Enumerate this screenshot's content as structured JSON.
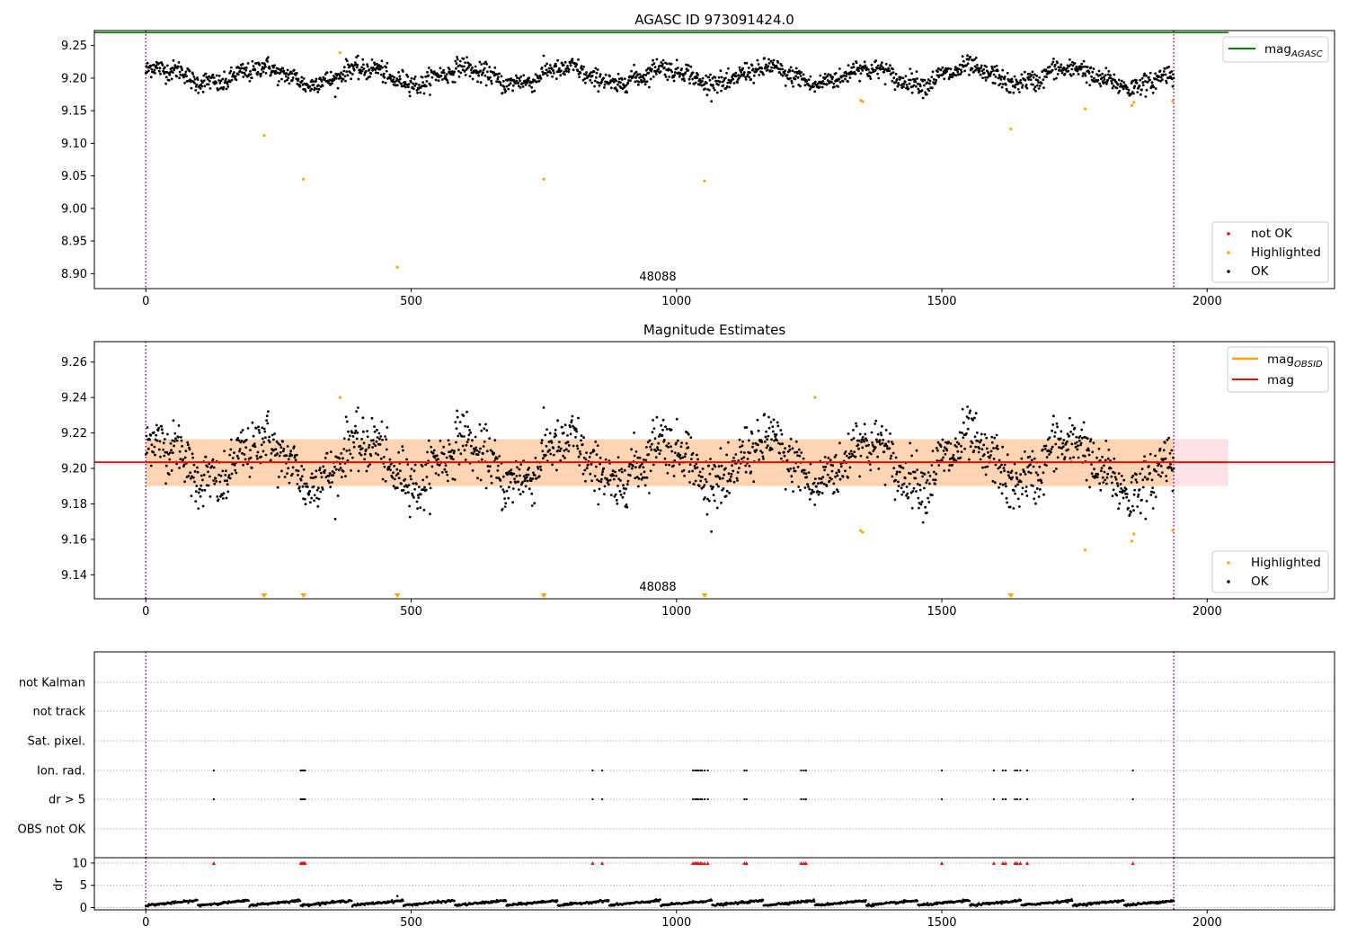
{
  "chart_data": [
    {
      "type": "scatter",
      "title": "AGASC ID 973091424.0",
      "xlim": [
        -97,
        2240
      ],
      "ylim": [
        8.877,
        9.273
      ],
      "xticks": [
        0,
        500,
        1000,
        1500,
        2000
      ],
      "yticks": [
        8.9,
        8.95,
        9.0,
        9.05,
        9.1,
        9.15,
        9.2,
        9.25
      ],
      "annotation": {
        "text": "48088",
        "x": 967,
        "y": 8.888
      },
      "vlines": [
        0,
        1937
      ],
      "hline": {
        "name": "mag_AGASC",
        "y": 9.27,
        "x_range": [
          -97,
          2040
        ],
        "color": "#008000"
      },
      "legend_upper": {
        "label": "mag",
        "sub": "AGASC"
      },
      "legend_lower": [
        {
          "label": "not OK",
          "color": "#ff0000"
        },
        {
          "label": "Highlighted",
          "color": "#ffa500"
        },
        {
          "label": "OK",
          "color": "#000000"
        }
      ],
      "ok_series": {
        "name": "OK",
        "x_range": [
          0,
          1937
        ],
        "n": 1900,
        "color": "#000000"
      },
      "highlighted": [
        [
          223,
          9.112
        ],
        [
          297,
          9.045
        ],
        [
          366,
          9.239
        ],
        [
          474,
          8.91
        ],
        [
          750,
          9.045
        ],
        [
          1053,
          9.042
        ],
        [
          1347,
          9.166
        ],
        [
          1351,
          9.164
        ],
        [
          1630,
          9.122
        ],
        [
          1770,
          9.153
        ],
        [
          1858,
          9.158
        ],
        [
          1862,
          9.163
        ],
        [
          1935,
          9.165
        ]
      ]
    },
    {
      "type": "scatter",
      "title": "Magnitude Estimates",
      "xlim": [
        -97,
        2240
      ],
      "ylim": [
        9.1265,
        9.2715
      ],
      "xticks": [
        0,
        500,
        1000,
        1500,
        2000
      ],
      "yticks": [
        9.14,
        9.16,
        9.18,
        9.2,
        9.22,
        9.24,
        9.26
      ],
      "annotation": {
        "text": "48088",
        "x": 967,
        "y": 9.131
      },
      "vlines": [
        0,
        1937
      ],
      "mag_line": {
        "name": "mag",
        "y": 9.2035,
        "color": "#ff0000"
      },
      "band_obsid": {
        "x_range": [
          0,
          1937
        ],
        "y_range": [
          9.19,
          9.2165
        ]
      },
      "band_mag": {
        "x_range": [
          0,
          2040
        ],
        "y_range": [
          9.19,
          9.2165
        ]
      },
      "legend_upper": [
        {
          "label": "mag",
          "sub": "OBSID",
          "color": "#ffa500"
        },
        {
          "label": "mag",
          "sub": "",
          "color": "#ff0000"
        }
      ],
      "legend_lower": [
        {
          "label": "Highlighted",
          "color": "#ffa500"
        },
        {
          "label": "OK",
          "color": "#000000"
        }
      ],
      "highlighted": [
        [
          366,
          9.24
        ],
        [
          1261,
          9.24
        ],
        [
          1347,
          9.165
        ],
        [
          1351,
          9.164
        ],
        [
          1770,
          9.154
        ],
        [
          1858,
          9.159
        ],
        [
          1862,
          9.163
        ],
        [
          1935,
          9.165
        ]
      ],
      "off_scale_low": [
        223,
        297,
        474,
        750,
        1053,
        1630
      ]
    },
    {
      "type": "scatter",
      "xlim": [
        -97,
        2240
      ],
      "xticks": [
        0,
        500,
        1000,
        1500,
        2000
      ],
      "vlines": [
        0,
        1937
      ],
      "flag_rows": [
        "not Kalman",
        "not track",
        "Sat. pixel.",
        "Ion. rad.",
        "dr > 5",
        "OBS not OK"
      ],
      "flag_events": [
        128,
        292,
        294,
        296,
        298,
        300,
        842,
        860,
        1031,
        1035,
        1038,
        1041,
        1045,
        1048,
        1053,
        1059,
        1128,
        1132,
        1235,
        1240,
        1244,
        1500,
        1598,
        1615,
        1620,
        1638,
        1642,
        1648,
        1661,
        1860
      ],
      "dr": {
        "ylabel": "dr",
        "ylim": [
          -0.5,
          11.2
        ],
        "yticks": [
          0,
          5,
          10
        ],
        "clip_value": 10,
        "series_x_range": [
          0,
          1937
        ],
        "outlier": [
          474,
          2.6
        ]
      }
    }
  ]
}
